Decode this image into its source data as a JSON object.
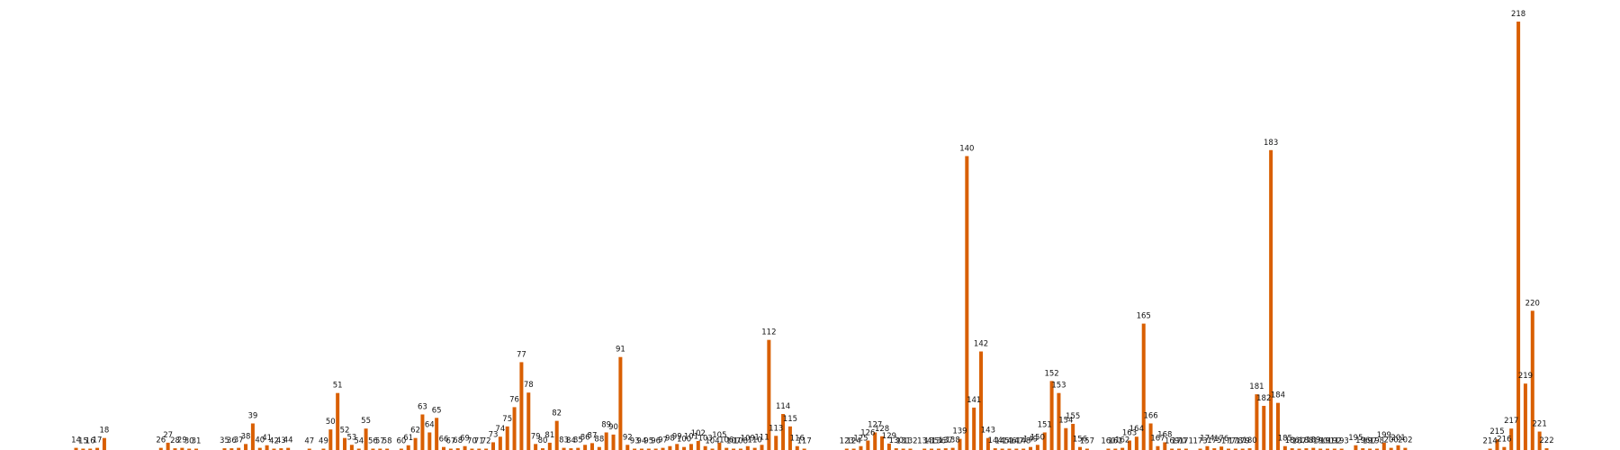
{
  "chart_data": {
    "type": "bar",
    "title": "",
    "xlabel": "",
    "ylabel": "",
    "bar_color": "#d95f02",
    "label_color": "#111111",
    "background": "#ffffff",
    "axes_visible": false,
    "grid": false,
    "legend": "none",
    "ylim": [
      0,
      1.05
    ],
    "x_range": [
      14,
      222
    ],
    "note_values": "bar heights are relative to the tallest bar (218 = 1.0); the chart prints no axis or values, only category labels",
    "bars": [
      {
        "x": 14,
        "label": "14",
        "value": 0.005
      },
      {
        "x": 15,
        "label": "15",
        "value": 0.002
      },
      {
        "x": 16,
        "label": "16",
        "value": 0.002
      },
      {
        "x": 17,
        "label": "17",
        "value": 0.005
      },
      {
        "x": 18,
        "label": "18",
        "value": 0.028
      },
      {
        "x": 26,
        "label": "26",
        "value": 0.005
      },
      {
        "x": 27,
        "label": "27",
        "value": 0.017
      },
      {
        "x": 28,
        "label": "28",
        "value": 0.004
      },
      {
        "x": 29,
        "label": "29",
        "value": 0.005
      },
      {
        "x": 30,
        "label": "30",
        "value": 0.002
      },
      {
        "x": 31,
        "label": "31",
        "value": 0.002
      },
      {
        "x": 35,
        "label": "35",
        "value": 0.004
      },
      {
        "x": 36,
        "label": "36",
        "value": 0.004
      },
      {
        "x": 37,
        "label": "37",
        "value": 0.005
      },
      {
        "x": 38,
        "label": "38",
        "value": 0.014
      },
      {
        "x": 39,
        "label": "39",
        "value": 0.062
      },
      {
        "x": 40,
        "label": "40",
        "value": 0.005
      },
      {
        "x": 41,
        "label": "41",
        "value": 0.011
      },
      {
        "x": 42,
        "label": "42",
        "value": 0.002
      },
      {
        "x": 43,
        "label": "43",
        "value": 0.004
      },
      {
        "x": 44,
        "label": "44",
        "value": 0.005
      },
      {
        "x": 47,
        "label": "47",
        "value": 0.002
      },
      {
        "x": 49,
        "label": "49",
        "value": 0.002
      },
      {
        "x": 50,
        "label": "50",
        "value": 0.048
      },
      {
        "x": 51,
        "label": "51",
        "value": 0.133
      },
      {
        "x": 52,
        "label": "52",
        "value": 0.028
      },
      {
        "x": 53,
        "label": "53",
        "value": 0.012
      },
      {
        "x": 54,
        "label": "54",
        "value": 0.002
      },
      {
        "x": 55,
        "label": "55",
        "value": 0.05
      },
      {
        "x": 56,
        "label": "56",
        "value": 0.002
      },
      {
        "x": 57,
        "label": "57",
        "value": 0.002
      },
      {
        "x": 58,
        "label": "58",
        "value": 0.002
      },
      {
        "x": 60,
        "label": "60",
        "value": 0.003
      },
      {
        "x": 61,
        "label": "61",
        "value": 0.011
      },
      {
        "x": 62,
        "label": "62",
        "value": 0.028
      },
      {
        "x": 63,
        "label": "63",
        "value": 0.083
      },
      {
        "x": 64,
        "label": "64",
        "value": 0.041
      },
      {
        "x": 65,
        "label": "65",
        "value": 0.075
      },
      {
        "x": 66,
        "label": "66",
        "value": 0.007
      },
      {
        "x": 67,
        "label": "67",
        "value": 0.003
      },
      {
        "x": 68,
        "label": "68",
        "value": 0.004
      },
      {
        "x": 69,
        "label": "69",
        "value": 0.009
      },
      {
        "x": 70,
        "label": "70",
        "value": 0.003
      },
      {
        "x": 71,
        "label": "71",
        "value": 0.002
      },
      {
        "x": 72,
        "label": "72",
        "value": 0.002
      },
      {
        "x": 73,
        "label": "73",
        "value": 0.018
      },
      {
        "x": 74,
        "label": "74",
        "value": 0.031
      },
      {
        "x": 75,
        "label": "75",
        "value": 0.055
      },
      {
        "x": 76,
        "label": "76",
        "value": 0.1
      },
      {
        "x": 77,
        "label": "77",
        "value": 0.205
      },
      {
        "x": 78,
        "label": "78",
        "value": 0.134
      },
      {
        "x": 79,
        "label": "79",
        "value": 0.014
      },
      {
        "x": 80,
        "label": "80",
        "value": 0.004
      },
      {
        "x": 81,
        "label": "81",
        "value": 0.017
      },
      {
        "x": 82,
        "label": "82",
        "value": 0.068
      },
      {
        "x": 83,
        "label": "83",
        "value": 0.005
      },
      {
        "x": 84,
        "label": "84",
        "value": 0.004
      },
      {
        "x": 85,
        "label": "85",
        "value": 0.005
      },
      {
        "x": 86,
        "label": "86",
        "value": 0.012
      },
      {
        "x": 87,
        "label": "87",
        "value": 0.016
      },
      {
        "x": 88,
        "label": "88",
        "value": 0.007
      },
      {
        "x": 89,
        "label": "89",
        "value": 0.041
      },
      {
        "x": 90,
        "label": "90",
        "value": 0.036
      },
      {
        "x": 91,
        "label": "91",
        "value": 0.217
      },
      {
        "x": 92,
        "label": "92",
        "value": 0.012
      },
      {
        "x": 93,
        "label": "93",
        "value": 0.002
      },
      {
        "x": 94,
        "label": "94",
        "value": 0.002
      },
      {
        "x": 95,
        "label": "95",
        "value": 0.002
      },
      {
        "x": 96,
        "label": "96",
        "value": 0.002
      },
      {
        "x": 97,
        "label": "97",
        "value": 0.005
      },
      {
        "x": 98,
        "label": "98",
        "value": 0.009
      },
      {
        "x": 99,
        "label": "99",
        "value": 0.014
      },
      {
        "x": 100,
        "label": "100",
        "value": 0.007
      },
      {
        "x": 101,
        "label": "101",
        "value": 0.014
      },
      {
        "x": 102,
        "label": "102",
        "value": 0.021
      },
      {
        "x": 103,
        "label": "103",
        "value": 0.009
      },
      {
        "x": 104,
        "label": "104",
        "value": 0.002
      },
      {
        "x": 105,
        "label": "105",
        "value": 0.017
      },
      {
        "x": 106,
        "label": "106",
        "value": 0.005
      },
      {
        "x": 107,
        "label": "107",
        "value": 0.002
      },
      {
        "x": 108,
        "label": "108",
        "value": 0.002
      },
      {
        "x": 109,
        "label": "109",
        "value": 0.009
      },
      {
        "x": 110,
        "label": "110",
        "value": 0.005
      },
      {
        "x": 111,
        "label": "111",
        "value": 0.012
      },
      {
        "x": 112,
        "label": "112",
        "value": 0.257
      },
      {
        "x": 113,
        "label": "113",
        "value": 0.033
      },
      {
        "x": 114,
        "label": "114",
        "value": 0.084
      },
      {
        "x": 115,
        "label": "115",
        "value": 0.055
      },
      {
        "x": 116,
        "label": "116",
        "value": 0.009
      },
      {
        "x": 117,
        "label": "117",
        "value": 0.002
      },
      {
        "x": 123,
        "label": "123",
        "value": 0.003
      },
      {
        "x": 124,
        "label": "124",
        "value": 0.002
      },
      {
        "x": 125,
        "label": "125",
        "value": 0.009
      },
      {
        "x": 126,
        "label": "126",
        "value": 0.022
      },
      {
        "x": 127,
        "label": "127",
        "value": 0.041
      },
      {
        "x": 128,
        "label": "128",
        "value": 0.032
      },
      {
        "x": 129,
        "label": "129",
        "value": 0.015
      },
      {
        "x": 130,
        "label": "130",
        "value": 0.004
      },
      {
        "x": 131,
        "label": "131",
        "value": 0.002
      },
      {
        "x": 132,
        "label": "132",
        "value": 0.002
      },
      {
        "x": 134,
        "label": "134",
        "value": 0.002
      },
      {
        "x": 135,
        "label": "135",
        "value": 0.002
      },
      {
        "x": 136,
        "label": "136",
        "value": 0.002
      },
      {
        "x": 137,
        "label": "137",
        "value": 0.004
      },
      {
        "x": 138,
        "label": "138",
        "value": 0.005
      },
      {
        "x": 139,
        "label": "139",
        "value": 0.026
      },
      {
        "x": 140,
        "label": "140",
        "value": 0.686
      },
      {
        "x": 141,
        "label": "141",
        "value": 0.099
      },
      {
        "x": 142,
        "label": "142",
        "value": 0.23
      },
      {
        "x": 143,
        "label": "143",
        "value": 0.028
      },
      {
        "x": 144,
        "label": "144",
        "value": 0.004
      },
      {
        "x": 145,
        "label": "145",
        "value": 0.002
      },
      {
        "x": 146,
        "label": "146",
        "value": 0.002
      },
      {
        "x": 147,
        "label": "147",
        "value": 0.002
      },
      {
        "x": 148,
        "label": "148",
        "value": 0.002
      },
      {
        "x": 149,
        "label": "149",
        "value": 0.007
      },
      {
        "x": 150,
        "label": "150",
        "value": 0.012
      },
      {
        "x": 151,
        "label": "151",
        "value": 0.041
      },
      {
        "x": 152,
        "label": "152",
        "value": 0.161
      },
      {
        "x": 153,
        "label": "153",
        "value": 0.133
      },
      {
        "x": 154,
        "label": "154",
        "value": 0.051
      },
      {
        "x": 155,
        "label": "155",
        "value": 0.061
      },
      {
        "x": 156,
        "label": "156",
        "value": 0.007
      },
      {
        "x": 157,
        "label": "157",
        "value": 0.002
      },
      {
        "x": 160,
        "label": "160",
        "value": 0.002
      },
      {
        "x": 161,
        "label": "161",
        "value": 0.002
      },
      {
        "x": 162,
        "label": "162",
        "value": 0.005
      },
      {
        "x": 163,
        "label": "163",
        "value": 0.022
      },
      {
        "x": 164,
        "label": "164",
        "value": 0.031
      },
      {
        "x": 165,
        "label": "165",
        "value": 0.295
      },
      {
        "x": 166,
        "label": "166",
        "value": 0.062
      },
      {
        "x": 167,
        "label": "167",
        "value": 0.009
      },
      {
        "x": 168,
        "label": "168",
        "value": 0.018
      },
      {
        "x": 169,
        "label": "169",
        "value": 0.002
      },
      {
        "x": 170,
        "label": "170",
        "value": 0.002
      },
      {
        "x": 171,
        "label": "171",
        "value": 0.002
      },
      {
        "x": 173,
        "label": "173",
        "value": 0.002
      },
      {
        "x": 174,
        "label": "174",
        "value": 0.009
      },
      {
        "x": 175,
        "label": "175",
        "value": 0.004
      },
      {
        "x": 176,
        "label": "176",
        "value": 0.008
      },
      {
        "x": 177,
        "label": "177",
        "value": 0.002
      },
      {
        "x": 178,
        "label": "178",
        "value": 0.002
      },
      {
        "x": 179,
        "label": "179",
        "value": 0.002
      },
      {
        "x": 180,
        "label": "180",
        "value": 0.004
      },
      {
        "x": 181,
        "label": "181",
        "value": 0.13
      },
      {
        "x": 182,
        "label": "182",
        "value": 0.103
      },
      {
        "x": 183,
        "label": "183",
        "value": 0.7
      },
      {
        "x": 184,
        "label": "184",
        "value": 0.11
      },
      {
        "x": 185,
        "label": "185",
        "value": 0.009
      },
      {
        "x": 186,
        "label": "186",
        "value": 0.004
      },
      {
        "x": 187,
        "label": "187",
        "value": 0.002
      },
      {
        "x": 188,
        "label": "188",
        "value": 0.004
      },
      {
        "x": 189,
        "label": "189",
        "value": 0.005
      },
      {
        "x": 190,
        "label": "190",
        "value": 0.002
      },
      {
        "x": 191,
        "label": "191",
        "value": 0.002
      },
      {
        "x": 192,
        "label": "192",
        "value": 0.002
      },
      {
        "x": 193,
        "label": "193",
        "value": 0.002
      },
      {
        "x": 195,
        "label": "195",
        "value": 0.011
      },
      {
        "x": 196,
        "label": "196",
        "value": 0.004
      },
      {
        "x": 197,
        "label": "197",
        "value": 0.002
      },
      {
        "x": 198,
        "label": "198",
        "value": 0.002
      },
      {
        "x": 199,
        "label": "199",
        "value": 0.017
      },
      {
        "x": 200,
        "label": "200",
        "value": 0.005
      },
      {
        "x": 201,
        "label": "201",
        "value": 0.011
      },
      {
        "x": 202,
        "label": "202",
        "value": 0.005
      },
      {
        "x": 214,
        "label": "214",
        "value": 0.002
      },
      {
        "x": 215,
        "label": "215",
        "value": 0.025
      },
      {
        "x": 216,
        "label": "216",
        "value": 0.007
      },
      {
        "x": 217,
        "label": "217",
        "value": 0.05
      },
      {
        "x": 218,
        "label": "218",
        "value": 1.0
      },
      {
        "x": 219,
        "label": "219",
        "value": 0.155
      },
      {
        "x": 220,
        "label": "220",
        "value": 0.325
      },
      {
        "x": 221,
        "label": "221",
        "value": 0.043
      },
      {
        "x": 222,
        "label": "222",
        "value": 0.004
      }
    ]
  }
}
